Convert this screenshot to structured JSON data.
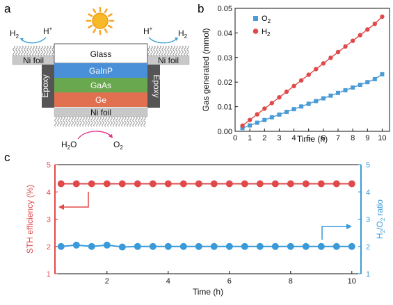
{
  "panels": {
    "a": "a",
    "b": "b",
    "c": "c"
  },
  "device": {
    "glass": "Glass",
    "gainp": "GaInP",
    "gaas": "GaAs",
    "ge": "Ge",
    "ni_foil_bottom": "Ni foil",
    "ni_foil_left": "Ni foil",
    "ni_foil_right": "Ni foil",
    "epoxy_left": "Epoxy",
    "epoxy_right": "Epoxy",
    "h2_left": "H",
    "h2_left_sub": "2",
    "hplus_left": "H",
    "hplus_left_sup": "+",
    "hplus_right": "H",
    "hplus_right_sup": "+",
    "h2_right": "H",
    "h2_right_sub": "2",
    "h2o": "H",
    "h2o_sub": "2",
    "h2o_tail": "O",
    "o2": "O",
    "o2_sub": "2",
    "colors": {
      "glass": "#ffffff",
      "gainp": "#4a90d9",
      "gaas": "#6aa84f",
      "ge": "#e07050",
      "ni_foil": "#c8c8c8",
      "epoxy": "#555555",
      "sun": "#f5a623",
      "arrow_blue": "#3aa0d8",
      "arrow_pink": "#e0308a"
    }
  },
  "chart_data": [
    {
      "id": "b",
      "type": "scatter",
      "xlabel": "Time (h)",
      "ylabel": "Gas generated (mmol)",
      "xlim": [
        0,
        10.5
      ],
      "ylim": [
        0,
        0.05
      ],
      "xticks": [
        "0",
        "1",
        "2",
        "3",
        "4",
        "5",
        "6",
        "7",
        "8",
        "9",
        "10"
      ],
      "yticks": [
        "0.00",
        "0.01",
        "0.02",
        "0.03",
        "0.04",
        "0.05"
      ],
      "legend_position": "top-left",
      "series": [
        {
          "name": "O",
          "name_sub": "2",
          "marker": "square",
          "color": "#4a9bd6",
          "x": [
            0.5,
            1,
            1.5,
            2,
            2.5,
            3,
            3.5,
            4,
            4.5,
            5,
            5.5,
            6,
            6.5,
            7,
            7.5,
            8,
            8.5,
            9,
            9.5,
            10
          ],
          "values": [
            0.0013,
            0.0024,
            0.0035,
            0.0046,
            0.0057,
            0.0068,
            0.0079,
            0.009,
            0.0101,
            0.0112,
            0.0123,
            0.0134,
            0.0145,
            0.0156,
            0.0167,
            0.0178,
            0.0189,
            0.02,
            0.0212,
            0.0232
          ]
        },
        {
          "name": "H",
          "name_sub": "2",
          "marker": "circle",
          "color": "#e0494a",
          "x": [
            0.5,
            1,
            1.5,
            2,
            2.5,
            3,
            3.5,
            4,
            4.5,
            5,
            5.5,
            6,
            6.5,
            7,
            7.5,
            8,
            8.5,
            9,
            9.5,
            10
          ],
          "values": [
            0.0023,
            0.0046,
            0.0069,
            0.0092,
            0.0115,
            0.0138,
            0.0161,
            0.0184,
            0.0207,
            0.023,
            0.0253,
            0.0276,
            0.0299,
            0.0322,
            0.0345,
            0.0368,
            0.0391,
            0.0414,
            0.0437,
            0.0466
          ]
        }
      ]
    },
    {
      "id": "c",
      "type": "line",
      "xlabel": "Time (h)",
      "ylabel_left": "STH efficiency (%)",
      "ylabel_right_parts": [
        "H",
        "2",
        "/O",
        "2",
        " ratio"
      ],
      "xlim": [
        0.3,
        10.3
      ],
      "ylim_left": [
        1,
        5
      ],
      "ylim_right": [
        1,
        5
      ],
      "xticks": [
        "2",
        "4",
        "6",
        "8",
        "10"
      ],
      "yticks_left": [
        "1",
        "2",
        "3",
        "4",
        "5"
      ],
      "yticks_right": [
        "1",
        "2",
        "3",
        "4",
        "5"
      ],
      "left_axis_color": "#e0494a",
      "right_axis_color": "#3a9ad9",
      "series": [
        {
          "axis": "left",
          "marker": "circle",
          "color": "#e0494a",
          "x": [
            0.5,
            1,
            1.5,
            2,
            2.5,
            3,
            3.5,
            4,
            4.5,
            5,
            5.5,
            6,
            6.5,
            7,
            7.5,
            8,
            8.5,
            9,
            9.5,
            10
          ],
          "values": [
            4.3,
            4.3,
            4.3,
            4.3,
            4.3,
            4.3,
            4.3,
            4.3,
            4.3,
            4.3,
            4.3,
            4.3,
            4.3,
            4.3,
            4.3,
            4.3,
            4.3,
            4.3,
            4.3,
            4.3
          ]
        },
        {
          "axis": "right",
          "marker": "circle",
          "color": "#3a9ad9",
          "x": [
            0.5,
            1,
            1.5,
            2,
            2.5,
            3,
            3.5,
            4,
            4.5,
            5,
            5.5,
            6,
            6.5,
            7,
            7.5,
            8,
            8.5,
            9,
            9.5,
            10
          ],
          "values": [
            2.0,
            2.05,
            2.0,
            2.05,
            1.98,
            2.0,
            2.0,
            2.0,
            2.0,
            2.0,
            2.0,
            2.0,
            2.0,
            2.0,
            2.0,
            2.0,
            2.0,
            2.0,
            2.0,
            2.0
          ]
        }
      ]
    }
  ]
}
